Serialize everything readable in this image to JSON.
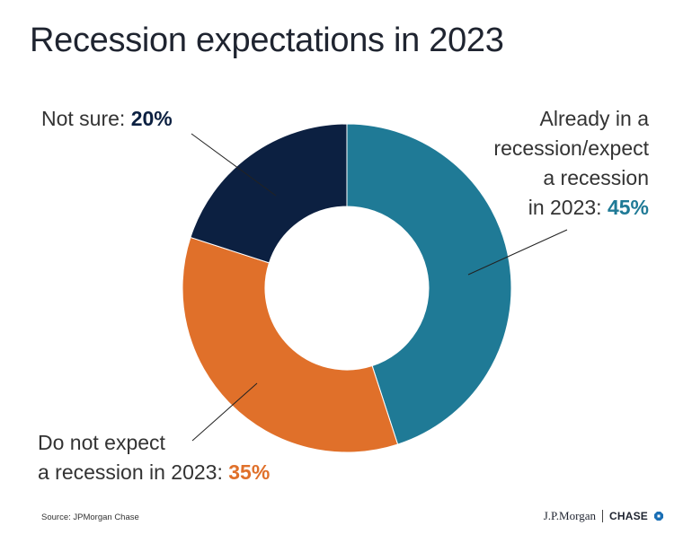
{
  "chart_data": {
    "type": "pie",
    "donut": true,
    "title": "Recession expectations in 2023",
    "slices": [
      {
        "id": "already",
        "label": "Already in a recession/expect a recession in 2023",
        "value": 45,
        "color": "#1f7a96"
      },
      {
        "id": "donot",
        "label": "Do not expect a recession in 2023",
        "value": 35,
        "color": "#e0702a"
      },
      {
        "id": "notsure",
        "label": "Not sure",
        "value": 20,
        "color": "#0c2041"
      }
    ]
  },
  "labels": {
    "not_sure": {
      "text": "Not sure: ",
      "value": "20%"
    },
    "already": {
      "line1": "Already in a",
      "line2": "recession/expect",
      "line3": "a recession",
      "line4": "in 2023: ",
      "value": "45%"
    },
    "do_not": {
      "line1": "Do not expect",
      "line2": "a recession in 2023: ",
      "value": "35%"
    }
  },
  "footer": {
    "source": "Source: JPMorgan Chase",
    "brand_jpm": "J.P.Morgan",
    "brand_chase": "CHASE"
  }
}
